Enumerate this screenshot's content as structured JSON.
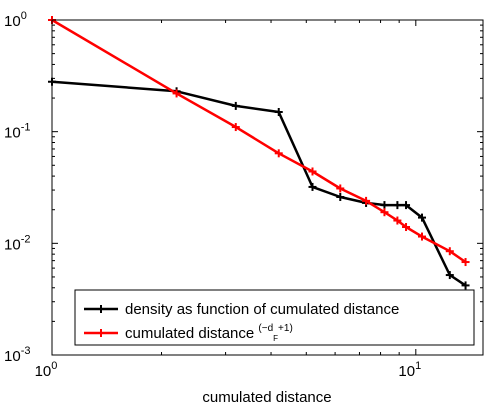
{
  "chart_data": {
    "type": "line",
    "xlabel": "cumulated distance",
    "ylabel": "",
    "title": "",
    "x_scale": "log",
    "y_scale": "log",
    "xlim": [
      1,
      15.3
    ],
    "ylim": [
      0.001,
      1
    ],
    "x_ticks": [
      {
        "value": 1,
        "base": "10",
        "exp": "0"
      },
      {
        "value": 10,
        "base": "10",
        "exp": "1"
      }
    ],
    "y_ticks": [
      {
        "value": 1,
        "base": "10",
        "exp": "0"
      },
      {
        "value": 0.1,
        "base": "10",
        "exp": "-1"
      },
      {
        "value": 0.01,
        "base": "10",
        "exp": "-2"
      },
      {
        "value": 0.001,
        "base": "10",
        "exp": "-3"
      }
    ],
    "grid": false,
    "legend_position": "bottom-right",
    "series": [
      {
        "label": "density as function of cumulated distance",
        "color": "#000000",
        "x": [
          1.0,
          2.2,
          3.2,
          4.2,
          5.2,
          6.2,
          7.3,
          8.2,
          8.9,
          9.4,
          10.4,
          12.4,
          13.7
        ],
        "y": [
          0.28,
          0.23,
          0.17,
          0.15,
          0.032,
          0.026,
          0.023,
          0.022,
          0.022,
          0.022,
          0.017,
          0.0052,
          0.0042
        ]
      },
      {
        "label_main": "cumulated distance ",
        "label_sup_pre": "(−d",
        "label_sub": "F",
        "label_sup_post": "+1)",
        "color": "#ff0000",
        "x": [
          1.0,
          2.2,
          3.2,
          4.2,
          5.2,
          6.2,
          7.3,
          8.2,
          8.9,
          9.4,
          10.4,
          12.4,
          13.7
        ],
        "y": [
          1.0,
          0.22,
          0.11,
          0.064,
          0.044,
          0.031,
          0.024,
          0.019,
          0.016,
          0.014,
          0.0115,
          0.0085,
          0.0068
        ]
      }
    ]
  }
}
